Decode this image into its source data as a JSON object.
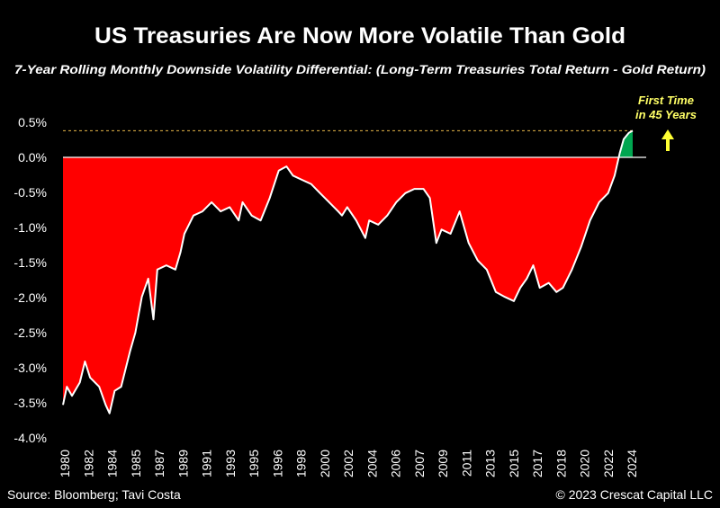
{
  "title": "US Treasuries Are Now More Volatile Than Gold",
  "subtitle": "7-Year Rolling Monthly Downside Volatility Differential: (Long-Term Treasuries Total Return - Gold Return)",
  "annotation": {
    "line1": "First Time",
    "line2": "in 45 Years",
    "color": "#ffff66",
    "arrow": "arrow-up-icon"
  },
  "source": "Source: Bloomberg; Tavi Costa",
  "copyright": "© 2023 Crescat Capital LLC",
  "colors": {
    "negative_fill": "#ff0000",
    "positive_fill": "#00a650",
    "line": "#ffffff",
    "reference_line": "#e8b84a",
    "background": "#000000"
  },
  "chart_data": {
    "type": "area",
    "title": "US Treasuries Are Now More Volatile Than Gold",
    "subtitle": "7-Year Rolling Monthly Downside Volatility Differential: (Long-Term Treasuries Total Return - Gold Return)",
    "xlabel": "",
    "ylabel": "",
    "ylim": [
      -4.0,
      0.5
    ],
    "y_ticks": [
      "0.5%",
      "0.0%",
      "-0.5%",
      "-1.0%",
      "-1.5%",
      "-2.0%",
      "-2.5%",
      "-3.0%",
      "-3.5%",
      "-4.0%"
    ],
    "x_ticks": [
      "1980",
      "1982",
      "1984",
      "1985",
      "1987",
      "1989",
      "1991",
      "1993",
      "1995",
      "1996",
      "1998",
      "2000",
      "2002",
      "2004",
      "2006",
      "2007",
      "2009",
      "2011",
      "2013",
      "2015",
      "2017",
      "2018",
      "2020",
      "2022",
      "2024"
    ],
    "reference_line": 0.38,
    "grid": false,
    "x": [
      1980.0,
      1980.3,
      1980.7,
      1981.3,
      1981.7,
      1982.1,
      1982.8,
      1983.3,
      1983.6,
      1984.0,
      1984.5,
      1985.2,
      1985.6,
      1986.1,
      1986.6,
      1987.0,
      1987.3,
      1988.0,
      1988.7,
      1989.1,
      1989.4,
      1990.1,
      1990.8,
      1991.5,
      1992.2,
      1992.9,
      1993.6,
      1993.9,
      1994.6,
      1995.3,
      1996.0,
      1996.7,
      1997.3,
      1997.8,
      1998.5,
      1999.2,
      1999.9,
      2000.6,
      2001.3,
      2001.6,
      2002.0,
      2002.7,
      2003.4,
      2003.7,
      2004.4,
      2005.1,
      2005.8,
      2006.5,
      2007.2,
      2007.9,
      2008.4,
      2008.9,
      2009.3,
      2010.0,
      2010.7,
      2011.4,
      2012.1,
      2012.8,
      2013.5,
      2014.2,
      2014.9,
      2015.4,
      2015.9,
      2016.4,
      2016.9,
      2017.6,
      2018.2,
      2018.7,
      2019.4,
      2020.1,
      2020.8,
      2021.5,
      2022.2,
      2022.7,
      2023.1,
      2023.4,
      2023.8,
      2024.1
    ],
    "values": [
      -3.53,
      -3.27,
      -3.4,
      -3.21,
      -2.91,
      -3.14,
      -3.27,
      -3.53,
      -3.65,
      -3.33,
      -3.27,
      -2.76,
      -2.5,
      -1.99,
      -1.73,
      -2.31,
      -1.6,
      -1.54,
      -1.6,
      -1.35,
      -1.09,
      -0.83,
      -0.77,
      -0.64,
      -0.77,
      -0.71,
      -0.9,
      -0.64,
      -0.83,
      -0.9,
      -0.58,
      -0.19,
      -0.13,
      -0.26,
      -0.32,
      -0.38,
      -0.51,
      -0.64,
      -0.77,
      -0.83,
      -0.71,
      -0.9,
      -1.15,
      -0.9,
      -0.96,
      -0.83,
      -0.64,
      -0.51,
      -0.45,
      -0.45,
      -0.58,
      -1.22,
      -1.03,
      -1.09,
      -0.77,
      -1.22,
      -1.47,
      -1.6,
      -1.92,
      -1.99,
      -2.05,
      -1.86,
      -1.73,
      -1.54,
      -1.86,
      -1.79,
      -1.92,
      -1.86,
      -1.6,
      -1.28,
      -0.9,
      -0.64,
      -0.51,
      -0.26,
      0.06,
      0.26,
      0.35,
      0.38
    ]
  }
}
